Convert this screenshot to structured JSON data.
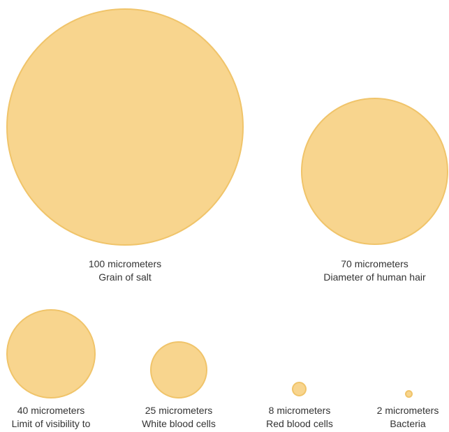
{
  "colors": {
    "fill": "#f8d58e",
    "stroke": "#f0c46a",
    "text": "#333333"
  },
  "items": [
    {
      "size": "100 micrometers",
      "name": "Grain of salt"
    },
    {
      "size": "70 micrometers",
      "name": "Diameter of human hair"
    },
    {
      "size": "40 micrometers",
      "name": "Limit of visibility to"
    },
    {
      "size": "25 micrometers",
      "name": "White blood cells"
    },
    {
      "size": "8 micrometers",
      "name": "Red blood cells"
    },
    {
      "size": "2 micrometers",
      "name": "Bacteria"
    }
  ]
}
